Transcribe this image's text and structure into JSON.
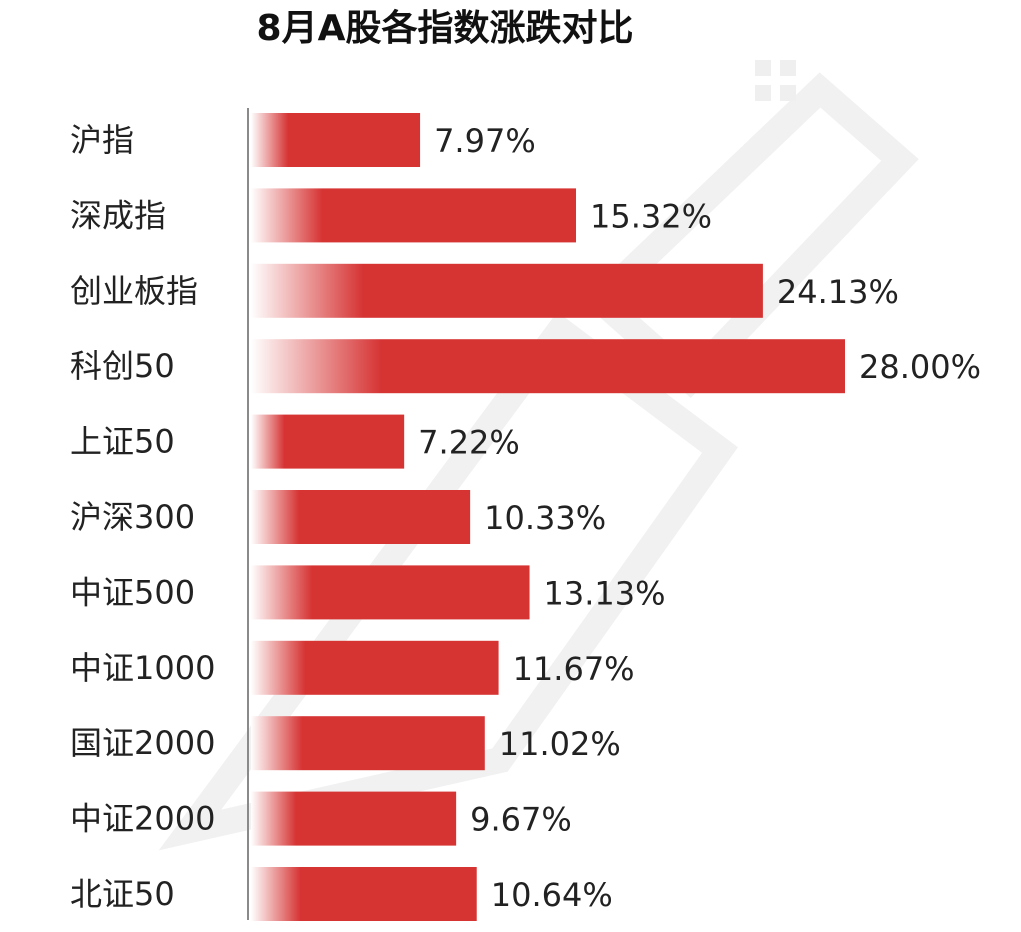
{
  "chart_data": {
    "type": "bar",
    "orientation": "horizontal",
    "title": "8月A股各指数涨跌对比",
    "categories": [
      "沪指",
      "深成指",
      "创业板指",
      "科创50",
      "上证50",
      "沪深300",
      "中证500",
      "中证1000",
      "国证2000",
      "中证2000",
      "北证50"
    ],
    "values": [
      7.97,
      15.32,
      24.13,
      28.0,
      7.22,
      10.33,
      13.13,
      11.67,
      11.02,
      9.67,
      10.64
    ],
    "value_labels": [
      "7.97%",
      "15.32%",
      "24.13%",
      "28.00%",
      "7.22%",
      "10.33%",
      "13.13%",
      "11.67%",
      "11.02%",
      "9.67%",
      "10.64%"
    ],
    "xlim": [
      0,
      28
    ],
    "grid": false,
    "legend": "none"
  },
  "colors": {
    "bar": "#d63333",
    "bar_fade": "#ffffff",
    "axis": "#8a8a8a",
    "text": "#222222"
  }
}
